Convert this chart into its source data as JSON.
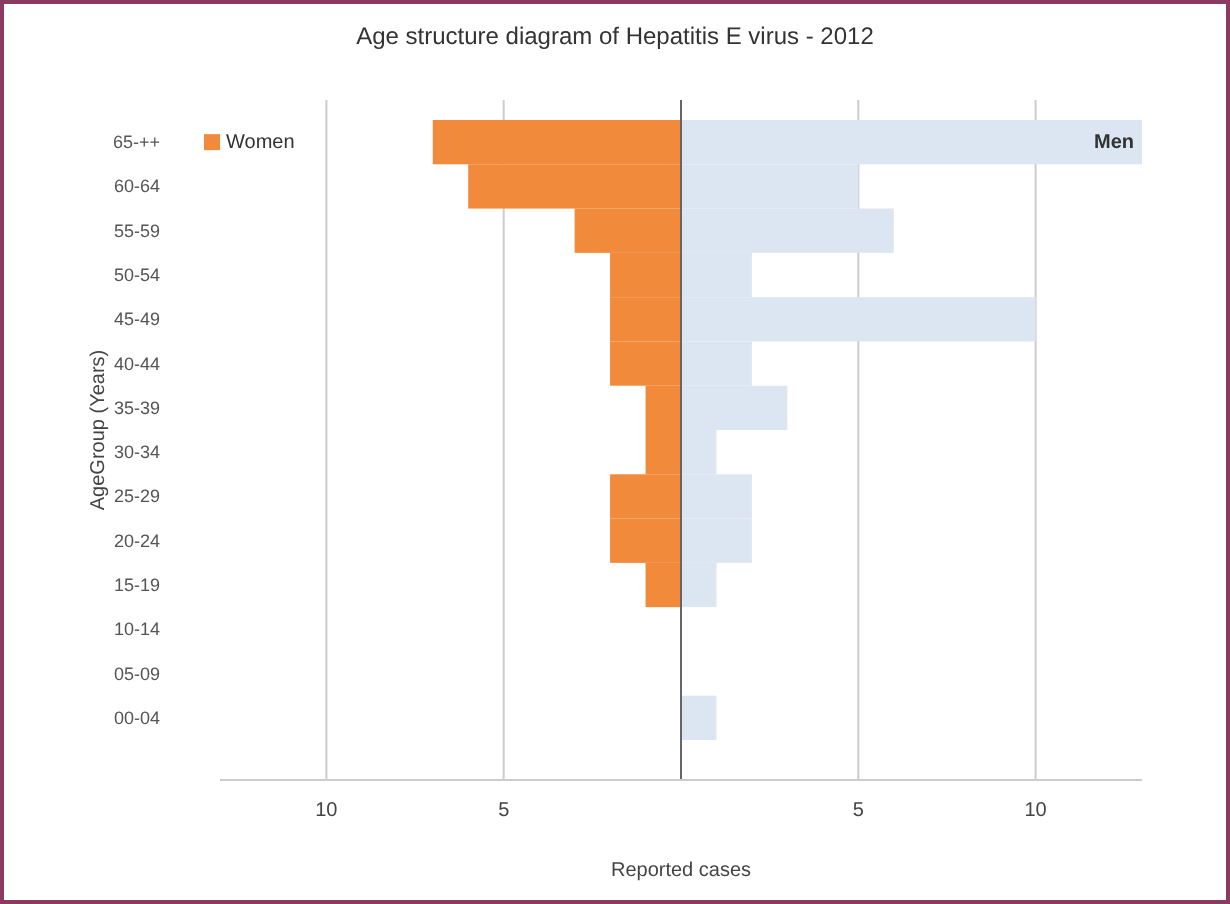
{
  "chart_data": {
    "type": "bar",
    "title": "Age structure diagram of Hepatitis E virus - 2012",
    "xlabel": "Reported cases",
    "ylabel": "AgeGroup (Years)",
    "orientation": "horizontal",
    "stacked": true,
    "categories": [
      "65-++",
      "60-64",
      "55-59",
      "50-54",
      "45-49",
      "40-44",
      "35-39",
      "30-34",
      "25-29",
      "20-24",
      "15-19",
      "10-14",
      "05-09",
      "00-04"
    ],
    "series": [
      {
        "name": "Women",
        "color": "#f28a3c",
        "values": [
          -7,
          -6,
          -3,
          -2,
          -2,
          -2,
          -1,
          -1,
          -2,
          -2,
          -1,
          0,
          0,
          0
        ]
      },
      {
        "name": "Men",
        "color": "#dce6f2",
        "values": [
          13,
          5,
          6,
          2,
          10,
          2,
          3,
          1,
          2,
          2,
          1,
          0,
          0,
          1
        ]
      }
    ],
    "xlim": [
      -13,
      13
    ],
    "xticks": [
      {
        "value": -10,
        "label": "10"
      },
      {
        "value": -5,
        "label": "5"
      },
      {
        "value": 0,
        "label": null
      },
      5,
      10
    ],
    "grid": "x"
  }
}
